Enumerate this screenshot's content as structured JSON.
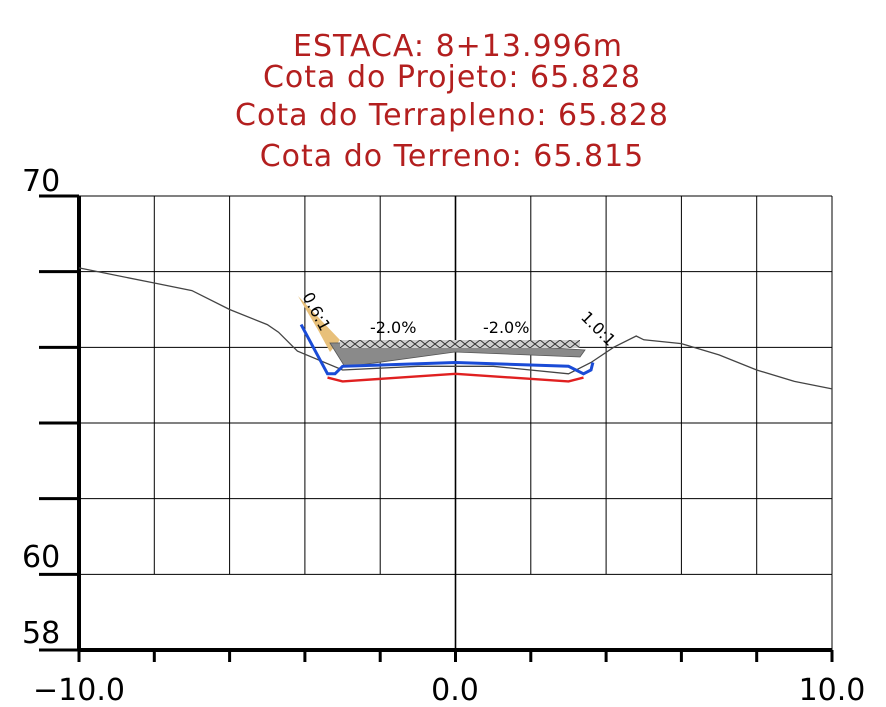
{
  "header": {
    "estaca": "ESTACA: 8+13.996m",
    "cota_projeto": "Cota do Projeto: 65.828",
    "cota_terrapleno": "Cota do Terrapleno: 65.828",
    "cota_terreno": "Cota do Terreno:  65.815"
  },
  "colors": {
    "header_text": "#b31f1f",
    "grid": "#000000",
    "terrain": "#444444",
    "pavement": "#1a4bd6",
    "subgrade": "#e02020",
    "cut_fill": "#e8c07a",
    "pavement_layer": "#8a8a8a"
  },
  "chart_data": {
    "type": "cross-section",
    "x_range": [
      -10,
      10
    ],
    "y_range": [
      58,
      70
    ],
    "x_tick_labels": [
      "−10.0",
      "0.0",
      "10.0"
    ],
    "y_tick_labels": [
      "70",
      "60",
      "58"
    ],
    "slope_labels": {
      "left_talude": "0.6:1",
      "left_lane": "-2.0%",
      "right_lane": "-2.0%",
      "right_talude": "1.0:1"
    },
    "terrain": [
      [
        -10,
        68.1
      ],
      [
        -8,
        67.7
      ],
      [
        -7,
        67.5
      ],
      [
        -6,
        67.0
      ],
      [
        -5,
        66.6
      ],
      [
        -4.7,
        66.4
      ],
      [
        -4.2,
        65.9
      ],
      [
        -3,
        65.4
      ],
      [
        -1,
        65.5
      ],
      [
        1,
        65.5
      ],
      [
        3,
        65.3
      ],
      [
        3.6,
        65.6
      ],
      [
        4.2,
        66.0
      ],
      [
        4.8,
        66.3
      ],
      [
        5.0,
        66.2
      ],
      [
        6.0,
        66.1
      ],
      [
        7.0,
        65.8
      ],
      [
        8.0,
        65.4
      ],
      [
        9.0,
        65.1
      ],
      [
        10.0,
        64.9
      ]
    ],
    "pavement_top": [
      [
        -4.1,
        66.6
      ],
      [
        -3.4,
        65.3
      ],
      [
        -3.2,
        65.3
      ],
      [
        -3.0,
        65.5
      ],
      [
        0.0,
        65.6
      ],
      [
        3.0,
        65.5
      ],
      [
        3.4,
        65.3
      ],
      [
        3.6,
        65.4
      ],
      [
        3.65,
        65.6
      ]
    ],
    "subgrade": [
      [
        -3.4,
        65.2
      ],
      [
        -3.0,
        65.1
      ],
      [
        0.0,
        65.3
      ],
      [
        3.0,
        65.1
      ],
      [
        3.4,
        65.2
      ]
    ]
  }
}
